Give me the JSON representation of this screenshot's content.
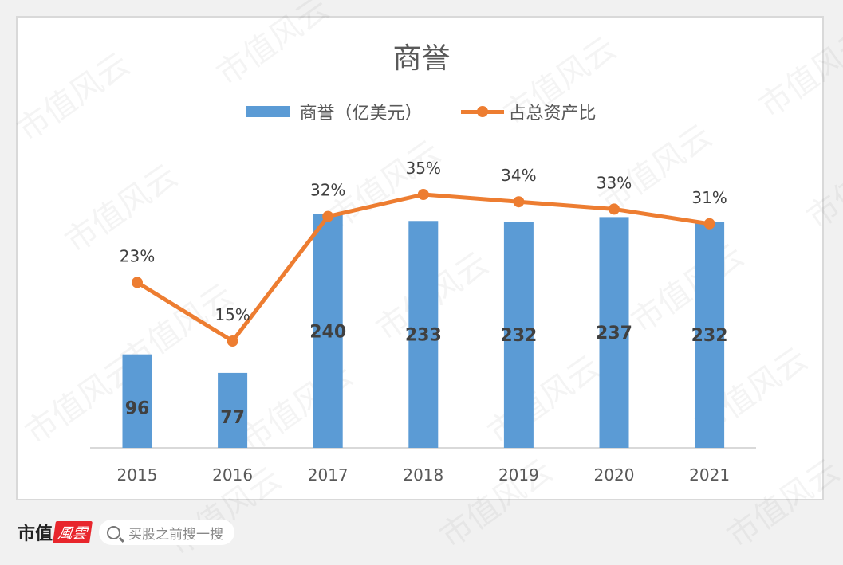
{
  "chart_data": {
    "type": "bar+line",
    "title": "商誉",
    "categories": [
      "2015",
      "2016",
      "2017",
      "2018",
      "2019",
      "2020",
      "2021"
    ],
    "series": [
      {
        "name": "商誉（亿美元）",
        "type": "bar",
        "color": "#5b9bd5",
        "values": [
          96,
          77,
          240,
          233,
          232,
          237,
          232
        ]
      },
      {
        "name": "占总资产比",
        "type": "line",
        "color": "#ed7d31",
        "values": [
          0.23,
          0.15,
          0.32,
          0.35,
          0.34,
          0.33,
          0.31
        ],
        "labels": [
          "23%",
          "15%",
          "32%",
          "35%",
          "34%",
          "33%",
          "31%"
        ]
      }
    ],
    "xlabel": "",
    "ylabel": "",
    "grid": false,
    "legend_position": "top"
  },
  "header": {
    "title": "商誉"
  },
  "legend": {
    "bar_label": "商誉（亿美元）",
    "line_label": "占总资产比"
  },
  "footer": {
    "brand_text": "市值",
    "brand_logo_text": "風雲",
    "search_placeholder": "买股之前搜一搜",
    "search_icon": "search-icon"
  },
  "watermark": "市值风云"
}
